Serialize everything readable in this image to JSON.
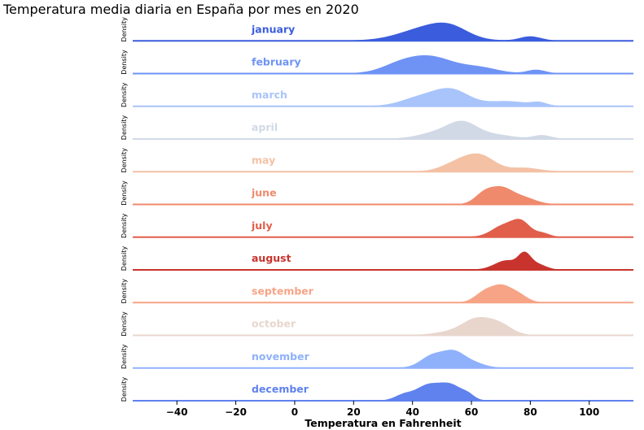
{
  "chart_data": {
    "type": "area",
    "title": "Temperatura media diaria en España por mes en 2020",
    "xlabel": "Temperatura en Fahrenheit",
    "ylabel": "Density",
    "xlim": [
      -55,
      115
    ],
    "xticks": [
      -40,
      -20,
      0,
      20,
      40,
      60,
      80,
      100
    ],
    "grid": false,
    "series": [
      {
        "name": "january",
        "color": "#3b5ddd",
        "peaks": [
          [
            45,
            9,
            0.9
          ],
          [
            53,
            6,
            0.6
          ],
          [
            80,
            3.5,
            0.3
          ]
        ]
      },
      {
        "name": "february",
        "color": "#6e93f5",
        "peaks": [
          [
            46,
            8,
            0.95
          ],
          [
            35,
            6,
            0.35
          ],
          [
            63,
            6,
            0.3
          ],
          [
            82,
            3,
            0.2
          ]
        ]
      },
      {
        "name": "march",
        "color": "#a9c4fb",
        "peaks": [
          [
            53,
            6,
            0.85
          ],
          [
            42,
            6,
            0.4
          ],
          [
            72,
            7,
            0.25
          ],
          [
            83,
            2.5,
            0.15
          ]
        ]
      },
      {
        "name": "april",
        "color": "#d1d9e6",
        "peaks": [
          [
            57,
            5,
            0.8
          ],
          [
            48,
            6,
            0.3
          ],
          [
            68,
            6,
            0.2
          ],
          [
            84,
            3,
            0.18
          ]
        ]
      },
      {
        "name": "may",
        "color": "#f4c1a5",
        "peaks": [
          [
            63,
            5,
            0.85
          ],
          [
            55,
            5,
            0.45
          ],
          [
            78,
            5,
            0.2
          ]
        ]
      },
      {
        "name": "june",
        "color": "#ef8a6c",
        "peaks": [
          [
            70,
            4,
            0.95
          ],
          [
            64,
            3,
            0.5
          ],
          [
            78,
            4,
            0.35
          ]
        ]
      },
      {
        "name": "july",
        "color": "#e15e4a",
        "peaks": [
          [
            77,
            3,
            0.9
          ],
          [
            71,
            4,
            0.75
          ],
          [
            84,
            2.5,
            0.25
          ]
        ]
      },
      {
        "name": "august",
        "color": "#c8342d",
        "peaks": [
          [
            78,
            2,
            0.9
          ],
          [
            72,
            4,
            0.65
          ],
          [
            82,
            3,
            0.4
          ]
        ]
      },
      {
        "name": "september",
        "color": "#f7a486",
        "peaks": [
          [
            70,
            3.5,
            0.95
          ],
          [
            64,
            3,
            0.5
          ],
          [
            76,
            3,
            0.4
          ]
        ]
      },
      {
        "name": "october",
        "color": "#e8d6cc",
        "peaks": [
          [
            62,
            5,
            0.95
          ],
          [
            70,
            4,
            0.5
          ],
          [
            52,
            5,
            0.15
          ]
        ]
      },
      {
        "name": "november",
        "color": "#8fb1fb",
        "peaks": [
          [
            54,
            3.5,
            0.75
          ],
          [
            47,
            4,
            0.7
          ],
          [
            60,
            4,
            0.3
          ]
        ]
      },
      {
        "name": "december",
        "color": "#5f82ee",
        "peaks": [
          [
            45,
            4,
            0.8
          ],
          [
            53,
            4,
            0.85
          ],
          [
            37,
            3,
            0.3
          ],
          [
            59,
            2,
            0.2
          ]
        ]
      }
    ]
  }
}
